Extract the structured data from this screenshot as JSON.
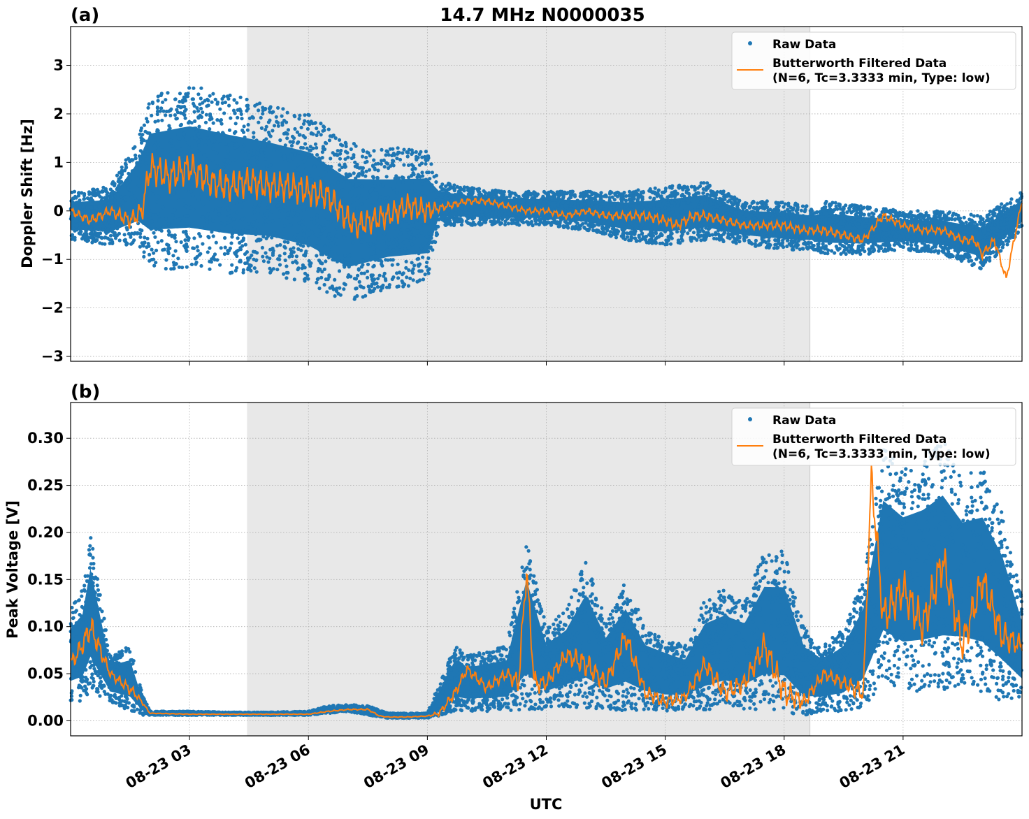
{
  "figure": {
    "title": "14.7 MHz N0000035",
    "xlabel": "UTC",
    "x_tick_labels": [
      "08-23 03",
      "08-23 06",
      "08-23 09",
      "08-23 12",
      "08-23 15",
      "08-23 18",
      "08-23 21"
    ],
    "legend": {
      "raw_label": "Raw Data",
      "filtered_line1": "Butterworth Filtered Data",
      "filtered_line2": "(N=6, Tc=3.3333 min, Type: low)"
    },
    "colors": {
      "raw": "#1f77b4",
      "filtered": "#ff7f0e",
      "shade": "#e8e8e8",
      "grid": "#b0b0b0"
    }
  },
  "chart_data": [
    {
      "type": "scatter",
      "panel_label": "(a)",
      "ylabel": "Doppler Shift [Hz]",
      "xlim_hours_utc": [
        0.0,
        24.0
      ],
      "ylim": [
        -3.1,
        3.8
      ],
      "y_ticks": [
        -3,
        -2,
        -1,
        0,
        1,
        2,
        3
      ],
      "y_tick_labels": [
        "−3",
        "−2",
        "−1",
        "0",
        "1",
        "2",
        "3"
      ],
      "shaded_interval_hours_utc": [
        4.45,
        18.65
      ],
      "grid": true,
      "legend_position": "top-right",
      "series": [
        {
          "name": "Raw Data",
          "style": "points",
          "envelope_hours": [
            0,
            1,
            1.7,
            2,
            3,
            4,
            5,
            6,
            7,
            8,
            9,
            9.3,
            10,
            11,
            12,
            13,
            14,
            15,
            16,
            17,
            18,
            18.7,
            19,
            20,
            21,
            22,
            23,
            24
          ],
          "upper": [
            0.4,
            0.5,
            1.5,
            2.4,
            2.6,
            2.4,
            2.2,
            2.0,
            1.4,
            1.3,
            1.3,
            0.6,
            0.5,
            0.4,
            0.4,
            0.4,
            0.4,
            0.5,
            0.6,
            0.2,
            0.2,
            0.1,
            0.2,
            0.1,
            0.0,
            0.0,
            -0.1,
            0.4
          ],
          "lower": [
            -0.6,
            -0.7,
            -0.7,
            -1.2,
            -1.2,
            -1.3,
            -1.3,
            -1.5,
            -1.9,
            -1.6,
            -1.5,
            -0.3,
            -0.3,
            -0.3,
            -0.3,
            -0.4,
            -0.6,
            -0.7,
            -0.6,
            -0.7,
            -0.8,
            -0.8,
            -0.9,
            -0.9,
            -0.8,
            -0.9,
            -1.2,
            -0.4
          ]
        },
        {
          "name": "Butterworth Filtered Data (N=6, Tc=3.3333 min, Type: low)",
          "style": "line",
          "x_hours": [
            0,
            0.5,
            1,
            1.5,
            1.8,
            2,
            2.5,
            3,
            3.5,
            4,
            4.5,
            5,
            5.5,
            6,
            6.5,
            6.9,
            7.2,
            7.6,
            8,
            8.5,
            9,
            9.5,
            10,
            10.5,
            11,
            11.5,
            12,
            12.5,
            13,
            13.5,
            14,
            14.5,
            15,
            15.3,
            15.7,
            16,
            16.5,
            17,
            17.5,
            18,
            18.5,
            19,
            19.5,
            20,
            20.5,
            21,
            21.5,
            22,
            22.5,
            22.8,
            23,
            23.3,
            23.6,
            24
          ],
          "values": [
            0.0,
            -0.2,
            0.0,
            -0.2,
            0.0,
            0.9,
            0.7,
            0.9,
            0.6,
            0.5,
            0.6,
            0.5,
            0.5,
            0.4,
            0.3,
            -0.1,
            -0.3,
            -0.2,
            -0.1,
            0.1,
            0.0,
            0.1,
            0.2,
            0.2,
            0.1,
            0.0,
            0.0,
            -0.1,
            0.0,
            -0.1,
            -0.1,
            -0.1,
            -0.2,
            -0.3,
            -0.1,
            -0.1,
            -0.2,
            -0.3,
            -0.3,
            -0.3,
            -0.4,
            -0.4,
            -0.5,
            -0.6,
            -0.1,
            -0.3,
            -0.4,
            -0.4,
            -0.6,
            -0.6,
            -0.9,
            -0.6,
            -1.4,
            0.2
          ]
        }
      ]
    },
    {
      "type": "scatter",
      "panel_label": "(b)",
      "ylabel": "Peak Voltage [V]",
      "xlim_hours_utc": [
        0.0,
        24.0
      ],
      "ylim": [
        -0.016,
        0.338
      ],
      "y_ticks": [
        0.0,
        0.05,
        0.1,
        0.15,
        0.2,
        0.25,
        0.3
      ],
      "y_tick_labels": [
        "0.00",
        "0.05",
        "0.10",
        "0.15",
        "0.20",
        "0.25",
        "0.30"
      ],
      "shaded_interval_hours_utc": [
        4.45,
        18.65
      ],
      "grid": true,
      "legend_position": "top-right",
      "series": [
        {
          "name": "Raw Data",
          "style": "points",
          "envelope_hours": [
            0,
            0.3,
            0.5,
            1,
            1.5,
            1.8,
            2,
            3,
            4,
            5,
            6,
            6.5,
            7,
            7.5,
            8,
            8.5,
            9,
            9.3,
            9.7,
            10,
            11,
            11.5,
            12,
            12.5,
            13,
            13.5,
            14,
            14.5,
            15,
            15.5,
            16,
            16.5,
            17,
            17.5,
            18,
            18.5,
            19,
            19.5,
            20,
            20.5,
            21,
            21.5,
            22,
            22.5,
            23,
            23.5,
            24
          ],
          "upper": [
            0.12,
            0.14,
            0.2,
            0.07,
            0.08,
            0.03,
            0.01,
            0.01,
            0.009,
            0.009,
            0.01,
            0.016,
            0.017,
            0.016,
            0.008,
            0.008,
            0.008,
            0.04,
            0.08,
            0.07,
            0.08,
            0.19,
            0.1,
            0.12,
            0.17,
            0.11,
            0.15,
            0.1,
            0.09,
            0.08,
            0.13,
            0.14,
            0.13,
            0.18,
            0.18,
            0.1,
            0.08,
            0.1,
            0.15,
            0.29,
            0.27,
            0.28,
            0.3,
            0.26,
            0.27,
            0.22,
            0.13
          ],
          "lower": [
            0.02,
            0.02,
            0.03,
            0.02,
            0.01,
            0.006,
            0.006,
            0.006,
            0.006,
            0.006,
            0.006,
            0.008,
            0.01,
            0.006,
            0.003,
            0.003,
            0.003,
            0.005,
            0.01,
            0.01,
            0.01,
            0.01,
            0.012,
            0.015,
            0.01,
            0.012,
            0.01,
            0.012,
            0.01,
            0.012,
            0.01,
            0.015,
            0.012,
            0.012,
            0.01,
            0.005,
            0.01,
            0.01,
            0.015,
            0.04,
            0.03,
            0.03,
            0.03,
            0.04,
            0.03,
            0.02,
            0.02
          ]
        },
        {
          "name": "Butterworth Filtered Data (N=6, Tc=3.3333 min, Type: low)",
          "style": "line",
          "x_hours": [
            0,
            0.3,
            0.5,
            1,
            1.3,
            1.6,
            1.8,
            2,
            3,
            4,
            5,
            6,
            6.5,
            7,
            7.5,
            7.8,
            8,
            8.5,
            9,
            9.3,
            9.7,
            10,
            10.5,
            11,
            11.3,
            11.5,
            11.7,
            12,
            12.5,
            13,
            13.5,
            14,
            14.5,
            15,
            15.5,
            16,
            16.5,
            17,
            17.5,
            18,
            18.5,
            19,
            19.5,
            20,
            20.2,
            20.5,
            21,
            21.5,
            22,
            22.5,
            23,
            23.5,
            24
          ],
          "values": [
            0.06,
            0.08,
            0.1,
            0.05,
            0.04,
            0.03,
            0.02,
            0.008,
            0.007,
            0.007,
            0.007,
            0.007,
            0.01,
            0.012,
            0.012,
            0.005,
            0.004,
            0.004,
            0.005,
            0.008,
            0.03,
            0.055,
            0.035,
            0.05,
            0.04,
            0.16,
            0.04,
            0.04,
            0.07,
            0.06,
            0.04,
            0.09,
            0.03,
            0.02,
            0.025,
            0.06,
            0.03,
            0.04,
            0.08,
            0.03,
            0.02,
            0.05,
            0.04,
            0.03,
            0.26,
            0.11,
            0.14,
            0.1,
            0.17,
            0.08,
            0.15,
            0.09,
            0.08
          ]
        }
      ]
    }
  ]
}
